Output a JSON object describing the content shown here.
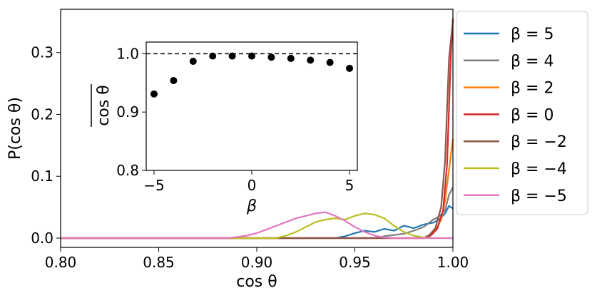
{
  "chart_data": [
    {
      "type": "line",
      "xlabel": "cos θ",
      "ylabel": "P(cos θ)",
      "xlim": [
        0.8,
        1.0
      ],
      "ylim": [
        -0.015,
        0.37
      ],
      "xticks": [
        "0.80",
        "0.85",
        "0.90",
        "0.95",
        "1.00"
      ],
      "xtick_values": [
        0.8,
        0.85,
        0.9,
        0.95,
        1.0
      ],
      "yticks": [
        "0.0",
        "0.1",
        "0.2",
        "0.3"
      ],
      "ytick_values": [
        0.0,
        0.1,
        0.2,
        0.3
      ],
      "legend_position": "outside-right",
      "series": [
        {
          "name": "β = 5",
          "color": "#1f77b4",
          "x": [
            0.8,
            0.94,
            0.945,
            0.95,
            0.955,
            0.96,
            0.965,
            0.97,
            0.975,
            0.98,
            0.985,
            0.99,
            0.993,
            0.996,
            0.998,
            1.0
          ],
          "y": [
            0,
            0,
            0.003,
            0.008,
            0.012,
            0.01,
            0.015,
            0.012,
            0.02,
            0.016,
            0.022,
            0.025,
            0.03,
            0.04,
            0.052,
            0.048
          ]
        },
        {
          "name": "β = 4",
          "color": "#7f7f7f",
          "x": [
            0.8,
            0.96,
            0.965,
            0.97,
            0.975,
            0.98,
            0.985,
            0.99,
            0.993,
            0.996,
            0.998,
            1.0
          ],
          "y": [
            0,
            0,
            0.003,
            0.005,
            0.007,
            0.012,
            0.018,
            0.03,
            0.035,
            0.045,
            0.07,
            0.082
          ]
        },
        {
          "name": "β = 2",
          "color": "#ff7f0e",
          "x": [
            0.8,
            0.985,
            0.988,
            0.991,
            0.994,
            0.996,
            0.998,
            1.0
          ],
          "y": [
            0,
            0,
            0.004,
            0.012,
            0.03,
            0.06,
            0.11,
            0.16
          ]
        },
        {
          "name": "β = 0",
          "color": "#d62728",
          "x": [
            0.8,
            0.986,
            0.989,
            0.992,
            0.995,
            0.997,
            0.999,
            1.0
          ],
          "y": [
            0,
            0,
            0.005,
            0.015,
            0.045,
            0.12,
            0.3,
            0.355
          ]
        },
        {
          "name": "β = −2",
          "color": "#8c564b",
          "x": [
            0.8,
            0.985,
            0.988,
            0.991,
            0.994,
            0.996,
            0.998,
            1.0
          ],
          "y": [
            0,
            0,
            0.005,
            0.016,
            0.05,
            0.125,
            0.29,
            0.352
          ]
        },
        {
          "name": "β = −4",
          "color": "#bcbd22",
          "x": [
            0.8,
            0.91,
            0.915,
            0.92,
            0.925,
            0.93,
            0.935,
            0.94,
            0.945,
            0.95,
            0.955,
            0.96,
            0.965,
            0.97,
            0.975,
            0.98,
            0.985,
            0.99,
            1.0
          ],
          "y": [
            0,
            0,
            0.004,
            0.01,
            0.018,
            0.026,
            0.03,
            0.032,
            0.03,
            0.036,
            0.04,
            0.038,
            0.032,
            0.02,
            0.01,
            0.004,
            0.001,
            0,
            0
          ]
        },
        {
          "name": "β = −5",
          "color": "#e377c2",
          "x": [
            0.8,
            0.885,
            0.89,
            0.895,
            0.9,
            0.905,
            0.91,
            0.915,
            0.92,
            0.925,
            0.93,
            0.935,
            0.94,
            0.945,
            0.95,
            0.955,
            0.96,
            0.965,
            0.97,
            1.0
          ],
          "y": [
            0,
            0,
            0.002,
            0.004,
            0.008,
            0.014,
            0.02,
            0.026,
            0.032,
            0.036,
            0.04,
            0.042,
            0.036,
            0.028,
            0.018,
            0.01,
            0.004,
            0.001,
            0,
            0
          ]
        }
      ]
    },
    {
      "type": "scatter",
      "xlabel": "β",
      "ylabel": "cos θ (mean)",
      "ylabel_symbol": "cos θ",
      "xlim": [
        -5.4,
        5.4
      ],
      "ylim": [
        0.8,
        1.02
      ],
      "xticks": [
        "−5",
        "0",
        "5"
      ],
      "xtick_values": [
        -5,
        0,
        5
      ],
      "yticks": [
        "0.8",
        "0.9",
        "1.0"
      ],
      "ytick_values": [
        0.8,
        0.9,
        1.0
      ],
      "reference_line": 1.0,
      "x": [
        -5,
        -4,
        -3,
        -2,
        -1,
        0,
        1,
        2,
        3,
        4,
        5
      ],
      "y": [
        0.931,
        0.954,
        0.987,
        0.996,
        0.996,
        0.996,
        0.994,
        0.992,
        0.989,
        0.985,
        0.975
      ]
    }
  ]
}
